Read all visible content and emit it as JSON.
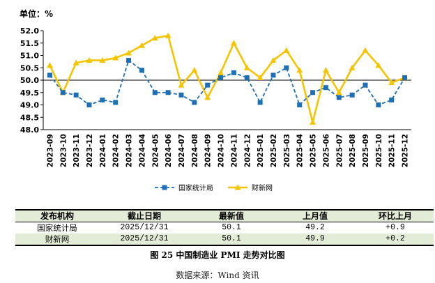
{
  "chart_data": {
    "type": "line",
    "unit_label": "单位：%",
    "x": [
      "2023-09",
      "2023-10",
      "2023-11",
      "2023-12",
      "2024-01",
      "2024-02",
      "2024-03",
      "2024-04",
      "2024-05",
      "2024-06",
      "2024-07",
      "2024-08",
      "2024-09",
      "2024-10",
      "2024-11",
      "2024-12",
      "2025-01",
      "2025-02",
      "2025-03",
      "2025-04",
      "2025-05",
      "2025-06",
      "2025-07",
      "2025-08",
      "2025-09",
      "2025-10",
      "2025-11",
      "2025-12"
    ],
    "ylim": [
      48.0,
      52.0
    ],
    "yticks": [
      "48.0",
      "48.5",
      "49.0",
      "49.5",
      "50.0",
      "50.5",
      "51.0",
      "51.5",
      "52.0"
    ],
    "reference_line": 50.0,
    "grid": false,
    "legend_position": "bottom",
    "series": [
      {
        "name": "国家统计局",
        "color": "#1f6fb4",
        "marker": "square",
        "dashed": true,
        "values": [
          50.2,
          49.5,
          49.4,
          49.0,
          49.2,
          49.1,
          50.8,
          50.4,
          49.5,
          49.5,
          49.4,
          49.1,
          49.8,
          50.1,
          50.3,
          50.1,
          49.1,
          50.2,
          50.5,
          49.0,
          49.5,
          49.7,
          49.3,
          49.4,
          49.8,
          49.0,
          49.2,
          50.1
        ]
      },
      {
        "name": "财新网",
        "color": "#f5c400",
        "marker": "triangle",
        "dashed": false,
        "values": [
          50.6,
          49.5,
          50.7,
          50.8,
          50.8,
          50.9,
          51.1,
          51.4,
          51.7,
          51.8,
          49.8,
          50.4,
          49.3,
          50.3,
          51.5,
          50.5,
          50.1,
          50.8,
          51.2,
          50.4,
          48.3,
          50.4,
          49.5,
          50.5,
          51.2,
          50.6,
          49.9,
          50.1
        ]
      }
    ]
  },
  "table": {
    "headers": [
      "发布机构",
      "截止日期",
      "最新值",
      "上月值",
      "环比上月"
    ],
    "rows": [
      [
        "国家统计局",
        "2025/12/31",
        "50.1",
        "49.2",
        "+0.9"
      ],
      [
        "财新网",
        "2025/12/31",
        "50.1",
        "49.9",
        "+0.2"
      ]
    ]
  },
  "caption": "图 25   中国制造业 PMI 走势对比图",
  "source": "数据来源：Wind 资讯"
}
